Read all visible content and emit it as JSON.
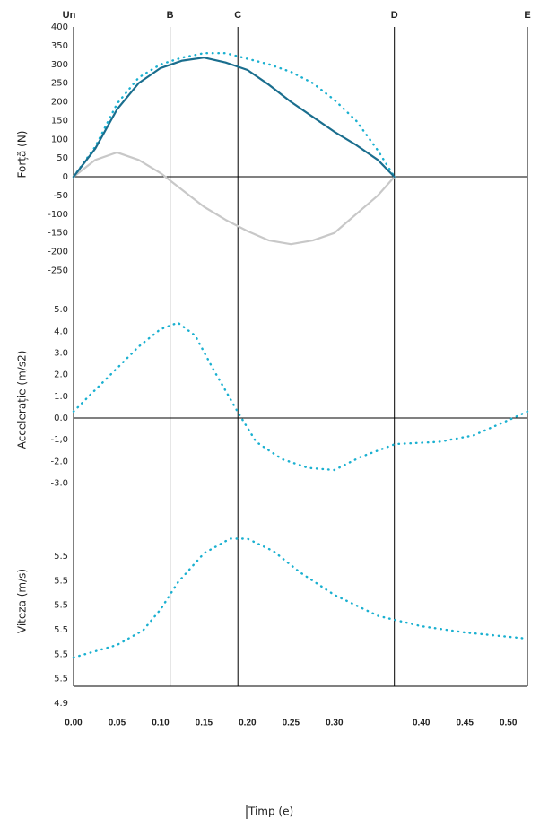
{
  "chart_data": [
    {
      "type": "line",
      "ylabel": "Forță (N)",
      "xlim": [
        0,
        0.522
      ],
      "ylim": [
        -280,
        400
      ],
      "yticks": [
        400,
        350,
        300,
        250,
        200,
        150,
        100,
        50,
        0,
        -50,
        -100,
        -150,
        -200,
        -250
      ],
      "zero_line": true,
      "markers": {
        "labels": [
          "Un",
          "B",
          "C",
          "D",
          "E"
        ],
        "x": [
          0,
          0.111,
          0.189,
          0.369,
          0.522
        ]
      },
      "x": [
        0,
        0.025,
        0.05,
        0.075,
        0.1,
        0.125,
        0.15,
        0.175,
        0.2,
        0.225,
        0.25,
        0.275,
        0.3,
        0.325,
        0.35,
        0.369
      ],
      "series": [
        {
          "color": "#c8c8c8",
          "style": "solid",
          "values": [
            0,
            45,
            65,
            45,
            10,
            -35,
            -80,
            -115,
            -145,
            -170,
            -180,
            -170,
            -150,
            -100,
            -50,
            0
          ]
        },
        {
          "color": "#1ab0d0",
          "style": "dotted",
          "values": [
            0,
            80,
            195,
            265,
            300,
            318,
            330,
            330,
            315,
            300,
            280,
            250,
            205,
            150,
            70,
            0
          ]
        },
        {
          "color": "#1a6e8e",
          "style": "solid",
          "values": [
            0,
            75,
            180,
            250,
            290,
            310,
            318,
            305,
            285,
            245,
            200,
            160,
            120,
            85,
            45,
            0
          ]
        }
      ]
    },
    {
      "type": "line",
      "ylabel": "Accelerație (m/s2)",
      "xlim": [
        0,
        0.522
      ],
      "ylim": [
        -3.6,
        5.3
      ],
      "yticks": [
        {
          "value": 5,
          "label": "5.0"
        },
        {
          "value": 4,
          "label": "4.0"
        },
        {
          "value": 3,
          "label": "3.0"
        },
        {
          "value": 2,
          "label": "2.0"
        },
        {
          "value": 1,
          "label": "1.0"
        },
        {
          "value": 0,
          "label": "0.0"
        },
        {
          "value": -1,
          "label": "-1,0"
        },
        {
          "value": -2,
          "label": "-2.0"
        },
        {
          "value": -3,
          "label": "-3.0"
        }
      ],
      "zero_line": true,
      "x": [
        0,
        0.025,
        0.05,
        0.075,
        0.1,
        0.12,
        0.14,
        0.16,
        0.19,
        0.21,
        0.24,
        0.27,
        0.3,
        0.33,
        0.37,
        0.42,
        0.46,
        0.5,
        0.522
      ],
      "series": [
        {
          "color": "#1ab0d0",
          "style": "dotted",
          "values": [
            0.3,
            1.3,
            2.3,
            3.3,
            4.1,
            4.4,
            3.8,
            2.3,
            0.2,
            -1.1,
            -1.9,
            -2.3,
            -2.4,
            -1.8,
            -1.2,
            -1.1,
            -0.8,
            -0.1,
            0.3
          ]
        }
      ]
    },
    {
      "type": "line",
      "ylabel": "Viteza (m/s)",
      "xlabel": "Timp (e)",
      "xlim": [
        0,
        0.522
      ],
      "ylim": [
        4.9,
        5.8
      ],
      "ytick_labels": [
        "5.5",
        "5.5",
        "5.5",
        "5.5",
        "5.5",
        "5.5",
        "4.9"
      ],
      "xticks": [
        {
          "value": 0,
          "label": "0.00"
        },
        0.05,
        {
          "value": 0.1,
          "label": "0.10"
        },
        0.15,
        {
          "value": 0.2,
          "label": "0.20"
        },
        0.25,
        {
          "value": 0.3,
          "label": "0.30"
        },
        {
          "value": 0.4,
          "label": "0.40"
        },
        0.45,
        {
          "value": 0.5,
          "label": "0.50"
        }
      ],
      "x": [
        0,
        0.05,
        0.08,
        0.1,
        0.12,
        0.15,
        0.18,
        0.2,
        0.23,
        0.26,
        0.3,
        0.35,
        0.4,
        0.45,
        0.522
      ],
      "series": [
        {
          "color": "#1ab0d0",
          "style": "dotted",
          "values": [
            5.12,
            5.18,
            5.25,
            5.35,
            5.48,
            5.62,
            5.69,
            5.69,
            5.63,
            5.53,
            5.42,
            5.32,
            5.27,
            5.24,
            5.21
          ]
        }
      ]
    }
  ]
}
